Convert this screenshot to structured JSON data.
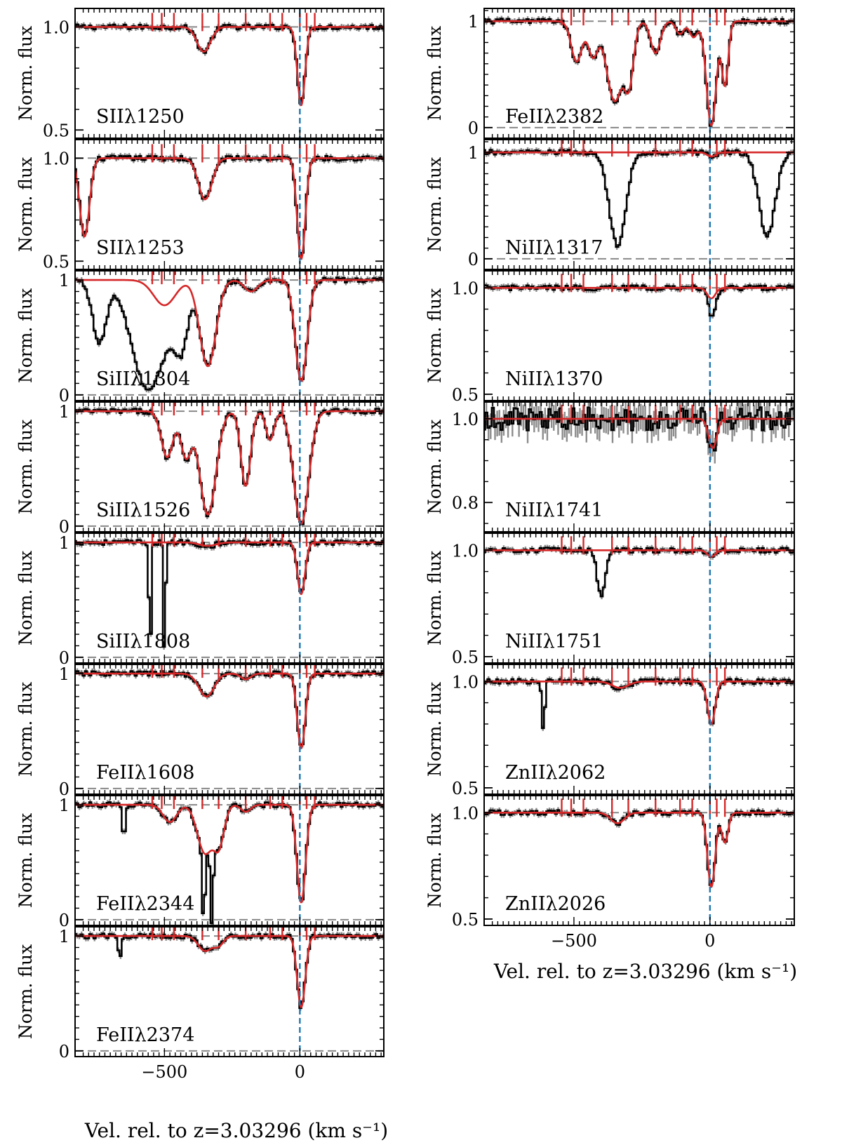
{
  "figure": {
    "y_axis_label": "Norm. flux",
    "x_axis_label": "Vel. rel. to z=3.03296 (km s⁻¹)"
  },
  "colors": {
    "data": "#000000",
    "error": "#8c8c8c",
    "model": "#d62728",
    "zero_line": "#1f77b4",
    "continuum": "#888888"
  },
  "chart_data": {
    "type": "line",
    "x_range": [
      -830,
      310
    ],
    "x_ticks": [
      -500,
      0
    ],
    "x_tick_labels": [
      "−500",
      "0"
    ],
    "component_velocities": [
      -545,
      -510,
      -465,
      -360,
      -300,
      -200,
      -110,
      -65,
      0,
      25,
      55
    ],
    "panels": [
      {
        "id": "SII1250",
        "ion": "SII",
        "lambda": "1250",
        "col": 0,
        "row": 0,
        "ylim": [
          0.46,
          1.09
        ],
        "yticks": [
          0.5,
          1.0
        ],
        "ytick_labels": [
          "0.5",
          "1.0"
        ],
        "absorption_features": [
          {
            "v": -355,
            "depth": 0.12,
            "sigma": 25
          },
          {
            "v": 5,
            "depth": 0.38,
            "sigma": 14
          }
        ],
        "contaminants": []
      },
      {
        "id": "SII1253",
        "ion": "SII",
        "lambda": "1253",
        "col": 0,
        "row": 1,
        "ylim": [
          0.46,
          1.09
        ],
        "yticks": [
          0.5,
          1.0
        ],
        "ytick_labels": [
          "0.5",
          "1.0"
        ],
        "absorption_features": [
          {
            "v": -350,
            "depth": 0.2,
            "sigma": 25
          },
          {
            "v": 5,
            "depth": 0.49,
            "sigma": 15
          },
          {
            "v": -795,
            "depth": 0.38,
            "sigma": 18
          }
        ],
        "contaminants": []
      },
      {
        "id": "SiII1304",
        "ion": "SiII",
        "lambda": "1304",
        "col": 0,
        "row": 2,
        "ylim": [
          -0.05,
          1.08
        ],
        "yticks": [
          0,
          1
        ],
        "ytick_labels": [
          "0",
          "1"
        ],
        "absorption_features": [
          {
            "v": -500,
            "depth": 0.22,
            "sigma": 40
          },
          {
            "v": -340,
            "depth": 0.75,
            "sigma": 30
          },
          {
            "v": -180,
            "depth": 0.1,
            "sigma": 25
          },
          {
            "v": 5,
            "depth": 0.88,
            "sigma": 22
          }
        ],
        "contaminants": [
          {
            "v": -740,
            "depth": 0.55,
            "sigma": 25
          },
          {
            "v": -560,
            "depth": 0.95,
            "sigma": 60
          },
          {
            "v": -440,
            "depth": 0.6,
            "sigma": 25
          }
        ]
      },
      {
        "id": "SiII1526",
        "ion": "SiII",
        "lambda": "1526",
        "col": 0,
        "row": 3,
        "ylim": [
          -0.05,
          1.08
        ],
        "yticks": [
          0,
          1
        ],
        "ytick_labels": [
          "0",
          "1"
        ],
        "absorption_features": [
          {
            "v": -490,
            "depth": 0.4,
            "sigma": 22
          },
          {
            "v": -420,
            "depth": 0.4,
            "sigma": 20
          },
          {
            "v": -340,
            "depth": 0.9,
            "sigma": 30
          },
          {
            "v": -200,
            "depth": 0.65,
            "sigma": 18
          },
          {
            "v": -110,
            "depth": 0.25,
            "sigma": 15
          },
          {
            "v": 5,
            "depth": 0.98,
            "sigma": 28
          }
        ],
        "contaminants": []
      },
      {
        "id": "SiII1808",
        "ion": "SiII",
        "lambda": "1808",
        "col": 0,
        "row": 4,
        "ylim": [
          -0.05,
          1.08
        ],
        "yticks": [
          0,
          1
        ],
        "ytick_labels": [
          "0",
          "1"
        ],
        "absorption_features": [
          {
            "v": -340,
            "depth": 0.03,
            "sigma": 30
          },
          {
            "v": 5,
            "depth": 0.45,
            "sigma": 14
          }
        ],
        "contaminants": [
          {
            "v": -553,
            "depth": 1.05,
            "sigma": 4
          },
          {
            "v": -500,
            "depth": 1.05,
            "sigma": 4
          }
        ]
      },
      {
        "id": "FeII1608",
        "ion": "FeII",
        "lambda": "1608",
        "col": 0,
        "row": 5,
        "ylim": [
          -0.05,
          1.08
        ],
        "yticks": [
          0,
          1
        ],
        "ytick_labels": [
          "0",
          "1"
        ],
        "absorption_features": [
          {
            "v": -345,
            "depth": 0.2,
            "sigma": 28
          },
          {
            "v": -200,
            "depth": 0.05,
            "sigma": 18
          },
          {
            "v": 5,
            "depth": 0.65,
            "sigma": 15
          }
        ],
        "contaminants": []
      },
      {
        "id": "FeII2344",
        "ion": "FeII",
        "lambda": "2344",
        "col": 0,
        "row": 6,
        "ylim": [
          -0.05,
          1.08
        ],
        "yticks": [
          0,
          1
        ],
        "ytick_labels": [
          "0",
          "1"
        ],
        "absorption_features": [
          {
            "v": -480,
            "depth": 0.15,
            "sigma": 25
          },
          {
            "v": -350,
            "depth": 0.42,
            "sigma": 28
          },
          {
            "v": -300,
            "depth": 0.35,
            "sigma": 20
          },
          {
            "v": -200,
            "depth": 0.06,
            "sigma": 18
          },
          {
            "v": 5,
            "depth": 0.85,
            "sigma": 16
          }
        ],
        "contaminants": [
          {
            "v": -355,
            "depth": 1.05,
            "sigma": 5
          },
          {
            "v": -325,
            "depth": 1.05,
            "sigma": 5
          },
          {
            "v": -650,
            "depth": 0.3,
            "sigma": 6
          }
        ]
      },
      {
        "id": "FeII2374",
        "ion": "FeII",
        "lambda": "2374",
        "col": 0,
        "row": 7,
        "ylim": [
          -0.05,
          1.08
        ],
        "yticks": [
          0,
          1
        ],
        "ytick_labels": [
          "0",
          "1"
        ],
        "absorption_features": [
          {
            "v": -350,
            "depth": 0.13,
            "sigma": 25
          },
          {
            "v": -300,
            "depth": 0.08,
            "sigma": 18
          },
          {
            "v": 5,
            "depth": 0.62,
            "sigma": 15
          }
        ],
        "contaminants": [
          {
            "v": -665,
            "depth": 0.2,
            "sigma": 6
          }
        ]
      },
      {
        "id": "FeII2382",
        "ion": "FeII",
        "lambda": "2382",
        "col": 1,
        "row": 0,
        "ylim": [
          -0.1,
          1.12
        ],
        "yticks": [
          0,
          1
        ],
        "ytick_labels": [
          "0",
          "1"
        ],
        "absorption_features": [
          {
            "v": -490,
            "depth": 0.38,
            "sigma": 20
          },
          {
            "v": -430,
            "depth": 0.33,
            "sigma": 18
          },
          {
            "v": -350,
            "depth": 0.75,
            "sigma": 30
          },
          {
            "v": -300,
            "depth": 0.6,
            "sigma": 18
          },
          {
            "v": -200,
            "depth": 0.3,
            "sigma": 18
          },
          {
            "v": -110,
            "depth": 0.12,
            "sigma": 15
          },
          {
            "v": -60,
            "depth": 0.15,
            "sigma": 15
          },
          {
            "v": 5,
            "depth": 0.98,
            "sigma": 18
          },
          {
            "v": 55,
            "depth": 0.6,
            "sigma": 12
          }
        ],
        "contaminants": []
      },
      {
        "id": "NiII1317",
        "ion": "NiII",
        "lambda": "1317",
        "col": 1,
        "row": 1,
        "ylim": [
          -0.1,
          1.12
        ],
        "yticks": [
          0,
          1
        ],
        "ytick_labels": [
          "0",
          "1"
        ],
        "absorption_features": [
          {
            "v": 5,
            "depth": 0.04,
            "sigma": 15
          }
        ],
        "contaminants": [
          {
            "v": -340,
            "depth": 0.88,
            "sigma": 30
          },
          {
            "v": 210,
            "depth": 0.78,
            "sigma": 30
          }
        ]
      },
      {
        "id": "NiII1370",
        "ion": "NiII",
        "lambda": "1370",
        "col": 1,
        "row": 2,
        "ylim": [
          0.47,
          1.08
        ],
        "yticks": [
          0.5,
          1.0
        ],
        "ytick_labels": [
          "0.5",
          "1.0"
        ],
        "absorption_features": [
          {
            "v": 5,
            "depth": 0.05,
            "sigma": 15
          }
        ],
        "contaminants": [
          {
            "v": 10,
            "depth": 0.1,
            "sigma": 12
          }
        ]
      },
      {
        "id": "NiII1741",
        "ion": "NiII",
        "lambda": "1741",
        "col": 1,
        "row": 3,
        "ylim": [
          0.73,
          1.04
        ],
        "yticks": [
          0.8,
          1.0
        ],
        "ytick_labels": [
          "0.8",
          "1.0"
        ],
        "absorption_features": [
          {
            "v": 10,
            "depth": 0.07,
            "sigma": 15
          }
        ],
        "contaminants": []
      },
      {
        "id": "NiII1751",
        "ion": "NiII",
        "lambda": "1751",
        "col": 1,
        "row": 4,
        "ylim": [
          0.47,
          1.08
        ],
        "yticks": [
          0.5,
          1.0
        ],
        "ytick_labels": [
          "0.5",
          "1.0"
        ],
        "absorption_features": [
          {
            "v": 5,
            "depth": 0.03,
            "sigma": 15
          }
        ],
        "contaminants": [
          {
            "v": -400,
            "depth": 0.22,
            "sigma": 14
          }
        ]
      },
      {
        "id": "ZnII2062",
        "ion": "ZnII",
        "lambda": "2062",
        "col": 1,
        "row": 5,
        "ylim": [
          0.47,
          1.08
        ],
        "yticks": [
          0.5,
          1.0
        ],
        "ytick_labels": [
          "0.5",
          "1.0"
        ],
        "absorption_features": [
          {
            "v": -330,
            "depth": 0.03,
            "sigma": 30
          },
          {
            "v": 5,
            "depth": 0.2,
            "sigma": 14
          }
        ],
        "contaminants": [
          {
            "v": -612,
            "depth": 0.25,
            "sigma": 5
          }
        ]
      },
      {
        "id": "ZnII2026",
        "ion": "ZnII",
        "lambda": "2026",
        "col": 1,
        "row": 6,
        "ylim": [
          0.47,
          1.08
        ],
        "yticks": [
          0.5,
          1.0
        ],
        "ytick_labels": [
          "0.5",
          "1.0"
        ],
        "absorption_features": [
          {
            "v": -340,
            "depth": 0.05,
            "sigma": 25
          },
          {
            "v": 5,
            "depth": 0.35,
            "sigma": 14
          },
          {
            "v": 55,
            "depth": 0.14,
            "sigma": 12
          }
        ],
        "contaminants": []
      }
    ]
  }
}
